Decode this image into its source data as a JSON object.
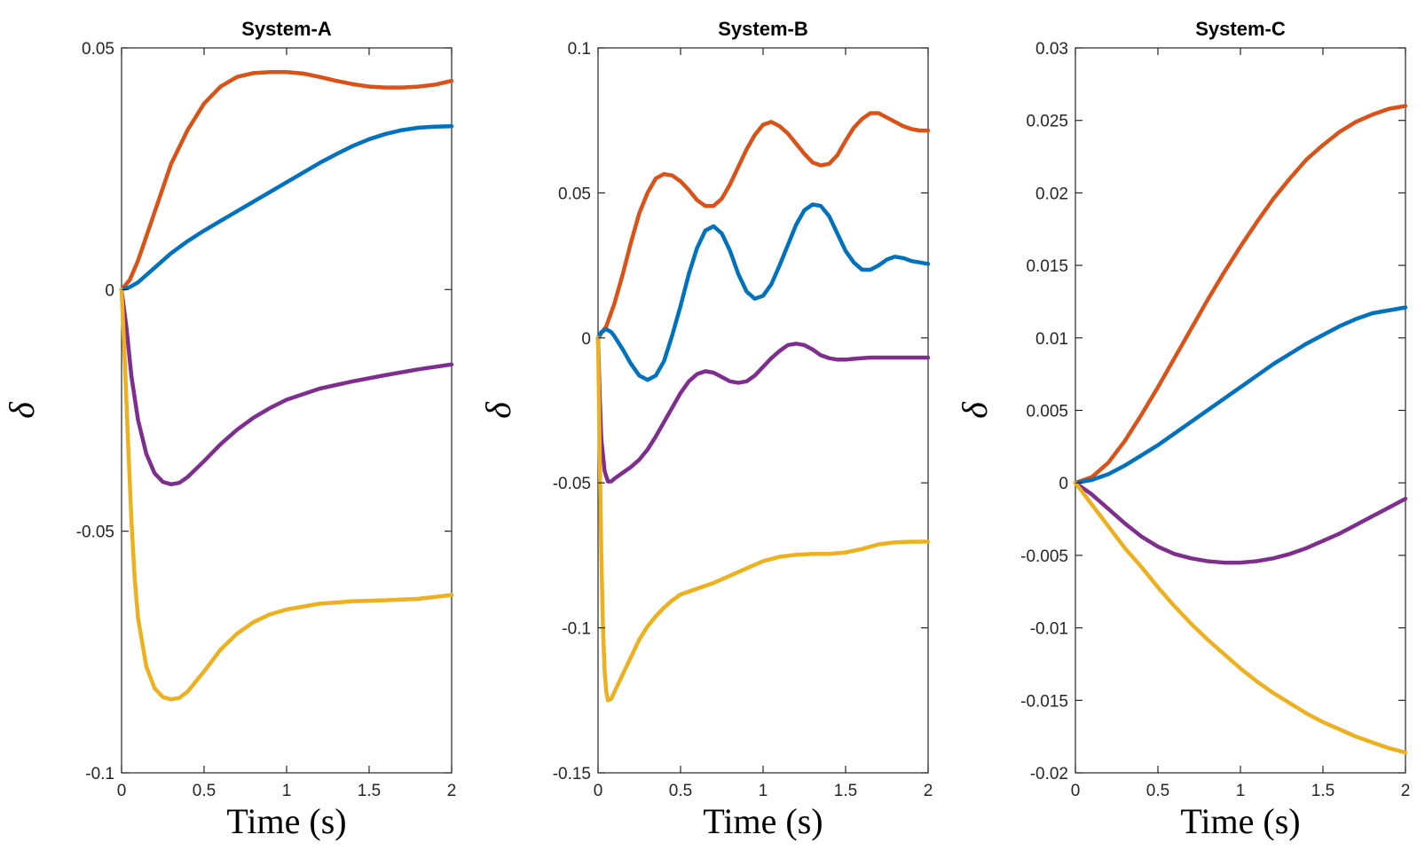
{
  "chart_data": [
    {
      "type": "line",
      "title": "System-A",
      "xlabel": "Time (s)",
      "ylabel": "δ",
      "xlim": [
        0,
        2
      ],
      "ylim": [
        -0.1,
        0.05
      ],
      "x_ticks": [
        0,
        0.5,
        1,
        1.5,
        2
      ],
      "x_tick_labels": [
        "0",
        "0.5",
        "1",
        "1.5",
        "2"
      ],
      "y_ticks": [
        -0.1,
        -0.05,
        0,
        0.05
      ],
      "y_tick_labels": [
        "-0.1",
        "-0.05",
        "0",
        "0.05"
      ],
      "grid": false,
      "series": [
        {
          "name": "orange",
          "color": "#D95319",
          "x": [
            0,
            0.05,
            0.1,
            0.2,
            0.3,
            0.4,
            0.5,
            0.6,
            0.7,
            0.8,
            0.9,
            1.0,
            1.1,
            1.2,
            1.3,
            1.4,
            1.5,
            1.6,
            1.7,
            1.8,
            1.9,
            2.0
          ],
          "y": [
            0,
            0.002,
            0.006,
            0.016,
            0.026,
            0.033,
            0.0385,
            0.042,
            0.044,
            0.0448,
            0.045,
            0.045,
            0.0447,
            0.044,
            0.0432,
            0.0425,
            0.042,
            0.0418,
            0.0418,
            0.042,
            0.0424,
            0.0432
          ]
        },
        {
          "name": "blue",
          "color": "#0072BD",
          "x": [
            0,
            0.05,
            0.1,
            0.2,
            0.3,
            0.4,
            0.5,
            0.6,
            0.7,
            0.8,
            0.9,
            1.0,
            1.1,
            1.2,
            1.3,
            1.4,
            1.5,
            1.6,
            1.7,
            1.8,
            1.9,
            2.0
          ],
          "y": [
            0,
            0.0005,
            0.0015,
            0.0045,
            0.0075,
            0.01,
            0.0122,
            0.0142,
            0.0162,
            0.0182,
            0.0202,
            0.0222,
            0.0242,
            0.0262,
            0.028,
            0.0297,
            0.0311,
            0.0322,
            0.033,
            0.0335,
            0.0337,
            0.0338
          ]
        },
        {
          "name": "purple",
          "color": "#7E2F8E",
          "x": [
            0,
            0.03,
            0.06,
            0.1,
            0.15,
            0.2,
            0.25,
            0.3,
            0.35,
            0.4,
            0.5,
            0.6,
            0.7,
            0.8,
            0.9,
            1.0,
            1.2,
            1.4,
            1.6,
            1.8,
            2.0
          ],
          "y": [
            0,
            -0.008,
            -0.018,
            -0.027,
            -0.034,
            -0.038,
            -0.0398,
            -0.0403,
            -0.04,
            -0.0388,
            -0.0355,
            -0.032,
            -0.029,
            -0.0265,
            -0.0245,
            -0.0228,
            -0.0205,
            -0.019,
            -0.0177,
            -0.0165,
            -0.0155
          ]
        },
        {
          "name": "yellow",
          "color": "#EDB120",
          "x": [
            0,
            0.02,
            0.04,
            0.06,
            0.08,
            0.1,
            0.15,
            0.2,
            0.25,
            0.3,
            0.35,
            0.4,
            0.5,
            0.6,
            0.7,
            0.8,
            0.9,
            1.0,
            1.2,
            1.4,
            1.6,
            1.8,
            2.0
          ],
          "y": [
            0,
            -0.015,
            -0.032,
            -0.048,
            -0.06,
            -0.068,
            -0.078,
            -0.0825,
            -0.0843,
            -0.0848,
            -0.0845,
            -0.0832,
            -0.079,
            -0.0745,
            -0.0712,
            -0.0688,
            -0.0672,
            -0.0662,
            -0.065,
            -0.0645,
            -0.0643,
            -0.064,
            -0.0632
          ]
        }
      ]
    },
    {
      "type": "line",
      "title": "System-B",
      "xlabel": "Time (s)",
      "ylabel": "δ",
      "xlim": [
        0,
        2
      ],
      "ylim": [
        -0.15,
        0.1
      ],
      "x_ticks": [
        0,
        0.5,
        1,
        1.5,
        2
      ],
      "x_tick_labels": [
        "0",
        "0.5",
        "1",
        "1.5",
        "2"
      ],
      "y_ticks": [
        -0.15,
        -0.1,
        -0.05,
        0,
        0.05,
        0.1
      ],
      "y_tick_labels": [
        "-0.15",
        "-0.1",
        "-0.05",
        "0",
        "0.05",
        "0.1"
      ],
      "grid": false,
      "series": [
        {
          "name": "orange",
          "color": "#D95319",
          "x": [
            0,
            0.05,
            0.1,
            0.15,
            0.2,
            0.25,
            0.3,
            0.35,
            0.4,
            0.45,
            0.5,
            0.55,
            0.6,
            0.65,
            0.7,
            0.75,
            0.8,
            0.85,
            0.9,
            0.95,
            1.0,
            1.05,
            1.1,
            1.15,
            1.2,
            1.25,
            1.3,
            1.35,
            1.4,
            1.45,
            1.5,
            1.55,
            1.6,
            1.65,
            1.7,
            1.75,
            1.8,
            1.85,
            1.9,
            1.95,
            2.0
          ],
          "y": [
            0,
            0.004,
            0.012,
            0.022,
            0.033,
            0.043,
            0.05,
            0.055,
            0.0565,
            0.056,
            0.054,
            0.051,
            0.0475,
            0.0455,
            0.0455,
            0.048,
            0.053,
            0.059,
            0.065,
            0.07,
            0.0735,
            0.0745,
            0.073,
            0.0705,
            0.067,
            0.0635,
            0.0605,
            0.0595,
            0.06,
            0.063,
            0.068,
            0.0725,
            0.0755,
            0.0775,
            0.0775,
            0.076,
            0.0745,
            0.073,
            0.072,
            0.0715,
            0.0715
          ]
        },
        {
          "name": "blue",
          "color": "#0072BD",
          "x": [
            0,
            0.02,
            0.05,
            0.08,
            0.1,
            0.15,
            0.2,
            0.25,
            0.3,
            0.35,
            0.4,
            0.45,
            0.5,
            0.55,
            0.6,
            0.65,
            0.7,
            0.75,
            0.8,
            0.85,
            0.9,
            0.95,
            1.0,
            1.05,
            1.1,
            1.15,
            1.2,
            1.25,
            1.3,
            1.35,
            1.4,
            1.45,
            1.5,
            1.55,
            1.6,
            1.65,
            1.7,
            1.75,
            1.8,
            1.85,
            1.9,
            1.95,
            2.0
          ],
          "y": [
            0,
            0.002,
            0.003,
            0.002,
            0.0005,
            -0.004,
            -0.009,
            -0.013,
            -0.0145,
            -0.013,
            -0.008,
            0.001,
            0.011,
            0.022,
            0.031,
            0.037,
            0.0385,
            0.036,
            0.03,
            0.022,
            0.016,
            0.0135,
            0.0145,
            0.0185,
            0.025,
            0.032,
            0.039,
            0.044,
            0.046,
            0.0455,
            0.042,
            0.036,
            0.03,
            0.026,
            0.0235,
            0.0235,
            0.025,
            0.027,
            0.028,
            0.0275,
            0.0265,
            0.026,
            0.0255
          ]
        },
        {
          "name": "purple",
          "color": "#7E2F8E",
          "x": [
            0,
            0.01,
            0.02,
            0.04,
            0.06,
            0.08,
            0.1,
            0.15,
            0.2,
            0.25,
            0.3,
            0.35,
            0.4,
            0.45,
            0.5,
            0.55,
            0.6,
            0.65,
            0.7,
            0.75,
            0.8,
            0.85,
            0.9,
            0.95,
            1.0,
            1.05,
            1.1,
            1.15,
            1.2,
            1.25,
            1.3,
            1.35,
            1.4,
            1.45,
            1.5,
            1.55,
            1.6,
            1.65,
            1.7,
            1.75,
            1.8,
            1.85,
            1.9,
            1.95,
            2.0
          ],
          "y": [
            0,
            -0.02,
            -0.035,
            -0.046,
            -0.0495,
            -0.0495,
            -0.0485,
            -0.0465,
            -0.0445,
            -0.042,
            -0.0385,
            -0.034,
            -0.029,
            -0.024,
            -0.019,
            -0.015,
            -0.0125,
            -0.0115,
            -0.012,
            -0.0135,
            -0.015,
            -0.0155,
            -0.015,
            -0.013,
            -0.01,
            -0.007,
            -0.0045,
            -0.0025,
            -0.002,
            -0.0025,
            -0.004,
            -0.006,
            -0.007,
            -0.0075,
            -0.0075,
            -0.0072,
            -0.007,
            -0.0068,
            -0.0068,
            -0.0068,
            -0.0068,
            -0.0068,
            -0.0068,
            -0.0068,
            -0.0068
          ]
        },
        {
          "name": "yellow",
          "color": "#EDB120",
          "x": [
            0,
            0.01,
            0.02,
            0.03,
            0.04,
            0.05,
            0.06,
            0.08,
            0.1,
            0.15,
            0.2,
            0.25,
            0.3,
            0.35,
            0.4,
            0.45,
            0.5,
            0.6,
            0.7,
            0.8,
            0.9,
            1.0,
            1.1,
            1.2,
            1.3,
            1.4,
            1.5,
            1.6,
            1.7,
            1.8,
            1.9,
            2.0
          ],
          "y": [
            0,
            -0.04,
            -0.075,
            -0.1,
            -0.115,
            -0.122,
            -0.125,
            -0.1245,
            -0.122,
            -0.116,
            -0.11,
            -0.104,
            -0.0995,
            -0.096,
            -0.093,
            -0.0905,
            -0.0885,
            -0.0865,
            -0.0845,
            -0.082,
            -0.0795,
            -0.077,
            -0.0755,
            -0.0748,
            -0.0745,
            -0.0745,
            -0.074,
            -0.0728,
            -0.0712,
            -0.0705,
            -0.0703,
            -0.0703
          ]
        }
      ]
    },
    {
      "type": "line",
      "title": "System-C",
      "xlabel": "Time (s)",
      "ylabel": "δ",
      "xlim": [
        0,
        2
      ],
      "ylim": [
        -0.02,
        0.03
      ],
      "x_ticks": [
        0,
        0.5,
        1,
        1.5,
        2
      ],
      "x_tick_labels": [
        "0",
        "0.5",
        "1",
        "1.5",
        "2"
      ],
      "y_ticks": [
        -0.02,
        -0.015,
        -0.01,
        -0.005,
        0,
        0.005,
        0.01,
        0.015,
        0.02,
        0.025,
        0.03
      ],
      "y_tick_labels": [
        "-0.02",
        "-0.015",
        "-0.01",
        "-0.005",
        "0",
        "0.005",
        "0.01",
        "0.015",
        "0.02",
        "0.025",
        "0.03"
      ],
      "grid": false,
      "series": [
        {
          "name": "orange",
          "color": "#D95319",
          "x": [
            0,
            0.1,
            0.2,
            0.3,
            0.4,
            0.5,
            0.6,
            0.7,
            0.8,
            0.9,
            1.0,
            1.1,
            1.2,
            1.3,
            1.4,
            1.5,
            1.6,
            1.7,
            1.8,
            1.9,
            2.0
          ],
          "y": [
            0,
            0.0004,
            0.0014,
            0.0029,
            0.0047,
            0.0066,
            0.0086,
            0.0106,
            0.0126,
            0.0145,
            0.0163,
            0.018,
            0.0196,
            0.021,
            0.0223,
            0.0233,
            0.0242,
            0.0249,
            0.0254,
            0.0258,
            0.026
          ]
        },
        {
          "name": "blue",
          "color": "#0072BD",
          "x": [
            0,
            0.1,
            0.2,
            0.3,
            0.4,
            0.5,
            0.6,
            0.7,
            0.8,
            0.9,
            1.0,
            1.1,
            1.2,
            1.3,
            1.4,
            1.5,
            1.6,
            1.7,
            1.8,
            1.9,
            2.0
          ],
          "y": [
            0,
            0.0002,
            0.0006,
            0.0012,
            0.0019,
            0.0026,
            0.0034,
            0.0042,
            0.005,
            0.0058,
            0.0066,
            0.0074,
            0.0082,
            0.0089,
            0.0096,
            0.0102,
            0.0108,
            0.0113,
            0.0117,
            0.0119,
            0.0121
          ]
        },
        {
          "name": "purple",
          "color": "#7E2F8E",
          "x": [
            0,
            0.1,
            0.2,
            0.3,
            0.4,
            0.5,
            0.6,
            0.7,
            0.8,
            0.9,
            1.0,
            1.1,
            1.2,
            1.3,
            1.4,
            1.5,
            1.6,
            1.7,
            1.8,
            1.9,
            2.0
          ],
          "y": [
            0,
            -0.0008,
            -0.0018,
            -0.0028,
            -0.0037,
            -0.0044,
            -0.0049,
            -0.0052,
            -0.0054,
            -0.0055,
            -0.0055,
            -0.0054,
            -0.0052,
            -0.0049,
            -0.0045,
            -0.004,
            -0.0035,
            -0.0029,
            -0.0023,
            -0.0017,
            -0.0011
          ]
        },
        {
          "name": "yellow",
          "color": "#EDB120",
          "x": [
            0,
            0.1,
            0.2,
            0.3,
            0.4,
            0.5,
            0.6,
            0.7,
            0.8,
            0.9,
            1.0,
            1.1,
            1.2,
            1.3,
            1.4,
            1.5,
            1.6,
            1.7,
            1.8,
            1.9,
            2.0
          ],
          "y": [
            0,
            -0.0015,
            -0.003,
            -0.0045,
            -0.0058,
            -0.0072,
            -0.0085,
            -0.0097,
            -0.0108,
            -0.0118,
            -0.0128,
            -0.0137,
            -0.0145,
            -0.0152,
            -0.0159,
            -0.0165,
            -0.017,
            -0.0175,
            -0.0179,
            -0.0183,
            -0.0186
          ]
        }
      ]
    }
  ]
}
